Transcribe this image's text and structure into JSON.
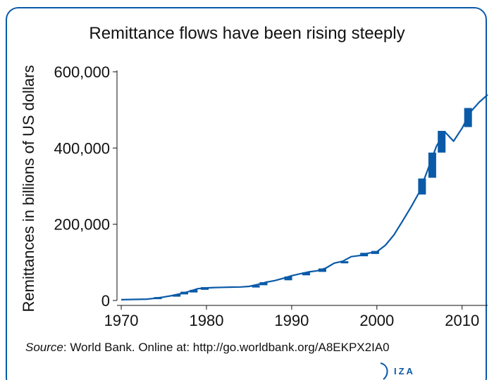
{
  "title": "Remittance flows have been rising steeply",
  "source": {
    "label": "Source",
    "text": ": World Bank. Online at: http://go.worldbank.org/A8EKPX2IA0"
  },
  "logo": {
    "text": "IZA",
    "icon": "iza-logo-icon"
  },
  "colors": {
    "line": "#0a5aa8",
    "frame": "#0a5aa8"
  },
  "chart_data": {
    "type": "line",
    "title": "Remittance flows have been rising steeply",
    "xlabel": "",
    "ylabel": "Remittances in billions of US dollars",
    "xlim": [
      1969.5,
      2013
    ],
    "ylim": [
      0,
      600000
    ],
    "x_ticks": [
      1970,
      1980,
      1990,
      2000,
      2010
    ],
    "y_ticks": [
      0,
      200000,
      400000,
      600000
    ],
    "y_tick_labels": [
      "0",
      "200,000",
      "400,000",
      "600,000"
    ],
    "grid": false,
    "legend": "none",
    "series": [
      {
        "x": [
          1970,
          1971,
          1972,
          1973,
          1974,
          1975,
          1976,
          1977,
          1978,
          1979,
          1980,
          1981,
          1982,
          1983,
          1984,
          1985,
          1986,
          1987,
          1988,
          1989,
          1990,
          1991,
          1992,
          1993,
          1994,
          1995,
          1996,
          1997,
          1998,
          1999,
          2000,
          2001,
          2002,
          2003,
          2004,
          2005,
          2006,
          2007,
          2008,
          2009,
          2010,
          2011,
          2012,
          2013
        ],
        "values": [
          2000,
          2500,
          3000,
          3500,
          6000,
          9000,
          13000,
          18000,
          24000,
          31000,
          33000,
          34000,
          34500,
          35000,
          35500,
          37000,
          42000,
          48000,
          52000,
          58000,
          65000,
          70000,
          75000,
          78000,
          85000,
          98000,
          103000,
          115000,
          118000,
          124000,
          128000,
          145000,
          172000,
          208000,
          245000,
          285000,
          345000,
          405000,
          442000,
          418000,
          452000,
          495000,
          520000,
          540000
        ]
      }
    ],
    "blocks": [
      {
        "x": 1974.3,
        "y_low": 4000,
        "y_high": 9000
      },
      {
        "x": 1976.5,
        "y_low": 10000,
        "y_high": 16000
      },
      {
        "x": 1977.4,
        "y_low": 16000,
        "y_high": 23000
      },
      {
        "x": 1978.5,
        "y_low": 21000,
        "y_high": 28000
      },
      {
        "x": 1979.8,
        "y_low": 28000,
        "y_high": 35000
      },
      {
        "x": 1985.8,
        "y_low": 34000,
        "y_high": 40000
      },
      {
        "x": 1986.7,
        "y_low": 40000,
        "y_high": 48000
      },
      {
        "x": 1989.6,
        "y_low": 53000,
        "y_high": 63000
      },
      {
        "x": 1991.7,
        "y_low": 66000,
        "y_high": 74000
      },
      {
        "x": 1993.6,
        "y_low": 75000,
        "y_high": 84000
      },
      {
        "x": 1996.2,
        "y_low": 98000,
        "y_high": 103000
      },
      {
        "x": 1998.5,
        "y_low": 116000,
        "y_high": 125000
      },
      {
        "x": 1999.8,
        "y_low": 122000,
        "y_high": 130000
      },
      {
        "x": 2005.3,
        "y_low": 278000,
        "y_high": 320000
      },
      {
        "x": 2006.5,
        "y_low": 322000,
        "y_high": 388000
      },
      {
        "x": 2007.6,
        "y_low": 388000,
        "y_high": 445000
      },
      {
        "x": 2010.7,
        "y_low": 455000,
        "y_high": 505000
      }
    ]
  }
}
